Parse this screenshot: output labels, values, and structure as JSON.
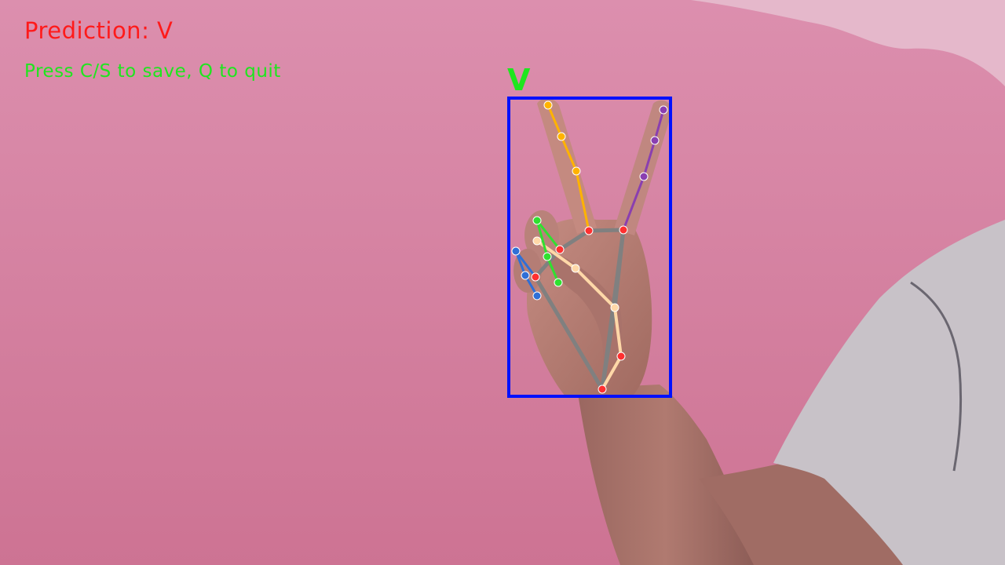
{
  "overlay": {
    "prediction_label": "Prediction: V",
    "instructions": "Press C/S to save, Q to quit",
    "box_label": "V"
  },
  "colors": {
    "prediction_text": "#ff1a1a",
    "instructions_text": "#1ee61e",
    "box_label_text": "#1ee61e",
    "bounding_box": "#0010ff",
    "skeleton": "#808080",
    "joint_red": "#ff3030",
    "thumb": "#ffd8a8",
    "index_finger": "#ffb300",
    "middle_finger": "#8a3fb0",
    "ring_finger": "#30e030",
    "pinky_finger": "#2f6fd6",
    "background_wall": "#d47f9f",
    "skin": "#b88075",
    "shirt": "#c9c3c8"
  },
  "icons": {
    "hand_landmarks": "hand-skeleton-icon"
  }
}
